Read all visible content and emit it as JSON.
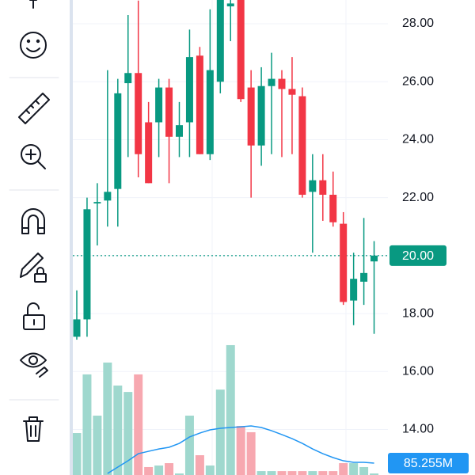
{
  "chart_data": {
    "type": "candlestick",
    "ylim": [
      12.43,
      28.82
    ],
    "yticks": [
      {
        "value": 14,
        "label": "14.00"
      },
      {
        "value": 16,
        "label": "16.00"
      },
      {
        "value": 18,
        "label": "18.00"
      },
      {
        "value": 20,
        "label": "20.00"
      },
      {
        "value": 22,
        "label": "22.00"
      },
      {
        "value": 24,
        "label": "24.00"
      },
      {
        "value": 26,
        "label": "26.00"
      },
      {
        "value": 28,
        "label": "28.00"
      }
    ],
    "grid": true,
    "up_color": "#089981",
    "down_color": "#f23645",
    "open": [
      17.2,
      17.8,
      21.8,
      21.9,
      22.3,
      25.95,
      26.3,
      24.6,
      24.6,
      25.8,
      24.1,
      24.6,
      26.9,
      23.5,
      26.0,
      28.6,
      29.0,
      25.8,
      23.8,
      25.85,
      26.1,
      25.75,
      25.5,
      22.2,
      22.6,
      22.1,
      21.1,
      18.45,
      19.1,
      19.8
    ],
    "high": [
      18.8,
      22.0,
      22.5,
      26.4,
      26.1,
      28.3,
      28.8,
      25.3,
      26.1,
      26.1,
      25.3,
      27.8,
      27.2,
      28.5,
      29.2,
      28.9,
      29.2,
      26.4,
      26.5,
      27.0,
      26.4,
      26.85,
      25.8,
      23.5,
      23.5,
      22.9,
      21.5,
      20.1,
      21.3,
      20.5
    ],
    "low": [
      17.1,
      17.2,
      20.35,
      21.0,
      21.0,
      23.4,
      22.7,
      22.5,
      23.4,
      22.5,
      23.4,
      23.4,
      23.5,
      23.3,
      25.6,
      27.4,
      25.3,
      22.0,
      23.1,
      23.5,
      23.4,
      23.5,
      22.0,
      20.1,
      21.2,
      21.0,
      18.3,
      17.6,
      18.3,
      17.3
    ],
    "close": [
      17.8,
      21.6,
      21.85,
      22.2,
      25.6,
      26.3,
      23.5,
      22.5,
      25.8,
      24.1,
      24.5,
      26.85,
      23.5,
      26.4,
      28.9,
      28.7,
      25.4,
      23.8,
      25.85,
      26.1,
      25.75,
      25.55,
      22.1,
      22.6,
      22.1,
      21.15,
      18.4,
      19.2,
      19.4,
      20.0
    ],
    "volume": [
      301,
      722,
      426,
      807,
      642,
      596,
      722,
      57,
      68,
      85,
      11,
      426,
      142,
      68,
      613,
      932,
      352,
      307,
      28,
      28,
      28,
      28,
      28,
      28,
      28,
      28,
      85,
      85,
      57,
      11
    ],
    "volume_ylim": [
      0,
      1000
    ],
    "volume_up_color": "#9fd8ce",
    "volume_down_color": "#f7a8b0",
    "volume_ma": {
      "color": "#2196f3",
      "values": [
        null,
        null,
        null,
        11,
        57,
        102,
        153,
        170,
        187,
        199,
        227,
        273,
        301,
        324,
        335,
        341,
        346,
        352,
        341,
        318,
        290,
        261,
        227,
        187,
        153,
        125,
        102,
        91,
        91,
        85.255
      ],
      "value_labels": [
        null,
        null,
        null,
        null,
        null,
        null,
        null,
        null,
        null,
        null,
        null,
        null,
        null,
        null,
        null,
        null,
        null,
        null,
        null,
        null,
        null,
        null,
        null,
        null,
        null,
        null,
        null,
        null,
        null,
        "85.255M"
      ]
    },
    "last_price": 20,
    "last_price_label": "20.00",
    "last_price_color": "#089981"
  }
}
